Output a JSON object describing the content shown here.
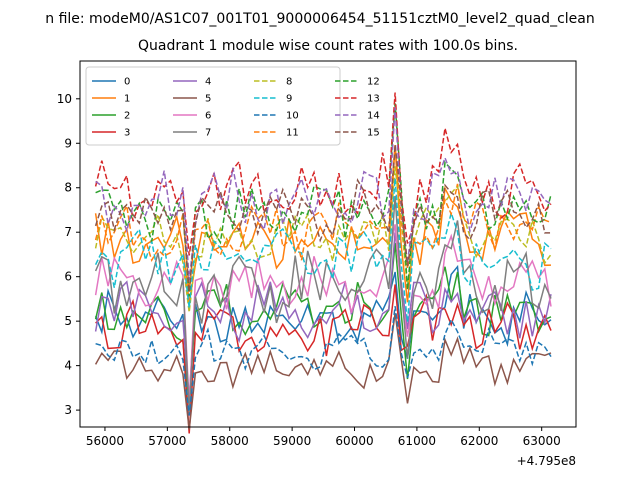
{
  "chart_data": {
    "type": "line",
    "suptitle": "n file: modeM0/AS1C07_001T01_9000006454_51151cztM0_level2_quad_clean",
    "title": "Quadrant 1 module wise count rates with 100.0s bins.",
    "xlabel": "",
    "ylabel": "",
    "x_offset_label": "+4.795e8",
    "x_ticks": [
      56000,
      57000,
      58000,
      59000,
      60000,
      61000,
      62000,
      63000
    ],
    "y_ticks": [
      3,
      4,
      5,
      6,
      7,
      8,
      9,
      10
    ],
    "xlim": [
      55600,
      63550
    ],
    "ylim": [
      2.62,
      10.85
    ],
    "x_start": 55850,
    "x_step": 100,
    "n_points": 74,
    "legend_position": "upper-left",
    "series": [
      {
        "name": "0",
        "color": "#1f77b4",
        "style": "solid",
        "mean": 5.0,
        "amp": 0.45,
        "seed": 1
      },
      {
        "name": "1",
        "color": "#ff7f0e",
        "style": "solid",
        "mean": 6.85,
        "amp": 0.45,
        "seed": 2
      },
      {
        "name": "2",
        "color": "#2ca02c",
        "style": "solid",
        "mean": 5.2,
        "amp": 0.5,
        "seed": 3
      },
      {
        "name": "3",
        "color": "#d62728",
        "style": "solid",
        "mean": 4.85,
        "amp": 0.45,
        "seed": 4
      },
      {
        "name": "4",
        "color": "#9467bd",
        "style": "solid",
        "mean": 5.25,
        "amp": 0.45,
        "seed": 5
      },
      {
        "name": "5",
        "color": "#8c564b",
        "style": "solid",
        "mean": 3.95,
        "amp": 0.3,
        "seed": 6
      },
      {
        "name": "6",
        "color": "#e377c2",
        "style": "solid",
        "mean": 5.8,
        "amp": 0.45,
        "seed": 7
      },
      {
        "name": "7",
        "color": "#7f7f7f",
        "style": "solid",
        "mean": 5.75,
        "amp": 0.55,
        "seed": 8
      },
      {
        "name": "8",
        "color": "#bcbd22",
        "style": "dashed",
        "mean": 7.0,
        "amp": 0.45,
        "seed": 9
      },
      {
        "name": "9",
        "color": "#17becf",
        "style": "dashed",
        "mean": 6.4,
        "amp": 0.45,
        "seed": 10
      },
      {
        "name": "10",
        "color": "#1f77b4",
        "style": "dashed",
        "mean": 4.35,
        "amp": 0.3,
        "seed": 11
      },
      {
        "name": "11",
        "color": "#ff7f0e",
        "style": "dashed",
        "mean": 7.05,
        "amp": 0.45,
        "seed": 12
      },
      {
        "name": "12",
        "color": "#2ca02c",
        "style": "dashed",
        "mean": 7.45,
        "amp": 0.45,
        "seed": 13
      },
      {
        "name": "13",
        "color": "#d62728",
        "style": "dashed",
        "mean": 8.0,
        "amp": 0.55,
        "seed": 14
      },
      {
        "name": "14",
        "color": "#9467bd",
        "style": "dashed",
        "mean": 7.7,
        "amp": 0.5,
        "seed": 15
      },
      {
        "name": "15",
        "color": "#8c564b",
        "style": "dashed",
        "mean": 7.5,
        "amp": 0.45,
        "seed": 16
      }
    ],
    "features": {
      "dip_x": 57350,
      "dip_depth": 0.42,
      "spike_x": 60650,
      "spike_height": 0.28,
      "drop_x": 60850,
      "drop_depth": 0.3,
      "bump_x": 61550,
      "bump_height": 0.12
    }
  }
}
